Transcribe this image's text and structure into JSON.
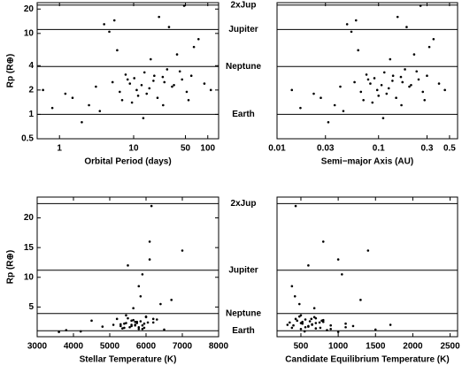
{
  "reference_lines": [
    {
      "value": 1,
      "label": "Earth"
    },
    {
      "value": 3.9,
      "label": "Neptune"
    },
    {
      "value": 11.2,
      "label": "Jupiter"
    },
    {
      "value": 22.4,
      "label": "2xJup"
    }
  ],
  "chart_data": [
    {
      "type": "scatter",
      "xlabel": "Orbital Period (days)",
      "ylabel": "Rp (R⊕)",
      "color": "#000000",
      "xscale": "log",
      "yscale": "log",
      "xlim": [
        0.5,
        140
      ],
      "ylim": [
        0.5,
        24
      ],
      "xticks": [
        1,
        10,
        50,
        100
      ],
      "yticks": [
        0.5,
        1,
        2,
        4,
        10,
        20
      ],
      "x": [
        1.2,
        2.5,
        3.1,
        4.0,
        5.2,
        6.5,
        7.8,
        8.9,
        10.2,
        11.5,
        12.8,
        14.0,
        16.3,
        18.5,
        21.0,
        24.7,
        28.3,
        33.0,
        38.5,
        45.0,
        52.0,
        60.0,
        75.0,
        90.0,
        110.0,
        3.5,
        4.7,
        6.0,
        9.5,
        13.5,
        17.0,
        22.0,
        26.0,
        30.0,
        42.0,
        55.0,
        2.0,
        1.5,
        0.8,
        0.6,
        7.0,
        11.0,
        19.0,
        35.0,
        65.0,
        5.5,
        8.3,
        15.0,
        25.0,
        48.0
      ],
      "y": [
        1.8,
        1.3,
        2.2,
        13.0,
        2.5,
        1.9,
        3.1,
        2.4,
        2.8,
        1.7,
        2.3,
        3.3,
        2.1,
        2.6,
        1.6,
        2.9,
        3.6,
        2.2,
        5.5,
        2.7,
        1.9,
        3.0,
        8.5,
        2.4,
        2.0,
        1.1,
        10.5,
        6.2,
        1.4,
        0.9,
        4.8,
        16.0,
        2.5,
        12.0,
        3.4,
        1.5,
        0.8,
        1.6,
        1.2,
        2.0,
        1.5,
        2.0,
        3.0,
        2.3,
        6.8,
        14.5,
        2.7,
        1.8,
        1.3,
        22.0
      ]
    },
    {
      "type": "scatter",
      "xlabel": "Semi−major Axis (AU)",
      "color": "#000000",
      "xscale": "log",
      "yscale": "log",
      "xlim": [
        0.01,
        0.6
      ],
      "ylim": [
        0.5,
        24
      ],
      "xticks": [
        0.01,
        0.03,
        0.1,
        0.3,
        0.5
      ],
      "x": [
        0.023,
        0.037,
        0.042,
        0.049,
        0.058,
        0.067,
        0.076,
        0.083,
        0.091,
        0.1,
        0.107,
        0.114,
        0.126,
        0.137,
        0.149,
        0.166,
        0.182,
        0.201,
        0.224,
        0.248,
        0.273,
        0.3,
        0.348,
        0.394,
        0.45,
        0.045,
        0.054,
        0.063,
        0.087,
        0.111,
        0.13,
        0.154,
        0.172,
        0.189,
        0.237,
        0.284,
        0.032,
        0.027,
        0.017,
        0.014,
        0.071,
        0.097,
        0.139,
        0.209,
        0.316,
        0.06,
        0.079,
        0.12,
        0.168,
        0.259
      ],
      "y": [
        1.8,
        1.3,
        2.2,
        13.0,
        2.5,
        1.9,
        3.1,
        2.4,
        2.8,
        1.7,
        2.3,
        3.3,
        2.1,
        2.6,
        1.6,
        2.9,
        3.6,
        2.2,
        5.5,
        2.7,
        1.9,
        3.0,
        8.5,
        2.4,
        2.0,
        1.1,
        10.5,
        6.2,
        1.4,
        0.9,
        4.8,
        16.0,
        2.5,
        12.0,
        3.4,
        1.5,
        0.8,
        1.6,
        1.2,
        2.0,
        1.5,
        2.0,
        3.0,
        2.3,
        6.8,
        14.5,
        2.7,
        1.8,
        1.3,
        22.0
      ]
    },
    {
      "type": "scatter",
      "xlabel": "Stellar Temperature (K)",
      "ylabel": "Rp (R⊕)",
      "color": "#000000",
      "xscale": "linear",
      "yscale": "linear",
      "xlim": [
        3000,
        8000
      ],
      "ylim": [
        0,
        23.5
      ],
      "xticks": [
        3000,
        4000,
        5000,
        6000,
        7000,
        8000
      ],
      "yticks": [
        5,
        10,
        15,
        20
      ],
      "x": [
        5600,
        5800,
        5400,
        6100,
        5700,
        5900,
        5500,
        6200,
        5650,
        4800,
        5750,
        6000,
        5300,
        5850,
        5550,
        6300,
        5450,
        5950,
        6400,
        4500,
        5700,
        5200,
        5800,
        6050,
        5600,
        3800,
        5900,
        6700,
        5350,
        4200,
        5650,
        6100,
        5750,
        5500,
        6000,
        5400,
        3600,
        5800,
        6500,
        5100,
        5950,
        5700,
        6200,
        5450,
        5850,
        7000,
        5600,
        5300,
        5900,
        6150
      ],
      "y": [
        1.8,
        1.3,
        2.2,
        13.0,
        2.5,
        1.9,
        3.1,
        2.4,
        2.8,
        1.7,
        2.3,
        3.3,
        2.1,
        2.6,
        1.6,
        2.9,
        3.6,
        2.2,
        5.5,
        2.7,
        1.9,
        3.0,
        8.5,
        2.4,
        2.0,
        1.1,
        10.5,
        6.2,
        1.4,
        0.9,
        4.8,
        16.0,
        2.5,
        12.0,
        3.4,
        1.5,
        0.8,
        1.6,
        1.2,
        2.0,
        1.5,
        2.0,
        3.0,
        2.3,
        6.8,
        14.5,
        2.7,
        1.8,
        1.3,
        22.0
      ]
    },
    {
      "type": "scatter",
      "xlabel": "Candidate Equilibrium Temperature (K)",
      "color": "#000000",
      "xscale": "linear",
      "yscale": "linear",
      "xlim": [
        180,
        2600
      ],
      "ylim": [
        0,
        23.5
      ],
      "xticks": [
        500,
        1000,
        1500,
        2000,
        2500
      ],
      "x": [
        1200,
        900,
        1100,
        1000,
        800,
        900,
        700,
        750,
        800,
        600,
        700,
        680,
        650,
        620,
        560,
        560,
        500,
        520,
        480,
        450,
        400,
        430,
        380,
        350,
        320,
        850,
        1050,
        1300,
        700,
        550,
        680,
        800,
        520,
        600,
        480,
        380,
        1000,
        1100,
        1500,
        1700,
        760,
        650,
        640,
        500,
        420,
        1400,
        780,
        600,
        500,
        430
      ],
      "y": [
        1.8,
        1.3,
        2.2,
        13.0,
        2.5,
        1.9,
        3.1,
        2.4,
        2.8,
        1.7,
        2.3,
        3.3,
        2.1,
        2.6,
        1.6,
        2.9,
        3.6,
        2.2,
        5.5,
        2.7,
        1.9,
        3.0,
        8.5,
        2.4,
        2.0,
        1.1,
        10.5,
        6.2,
        1.4,
        0.9,
        4.8,
        16.0,
        2.5,
        12.0,
        3.4,
        1.5,
        0.8,
        1.6,
        1.2,
        2.0,
        1.5,
        2.0,
        3.0,
        2.3,
        6.8,
        14.5,
        2.7,
        1.8,
        1.3,
        22.0
      ]
    }
  ]
}
